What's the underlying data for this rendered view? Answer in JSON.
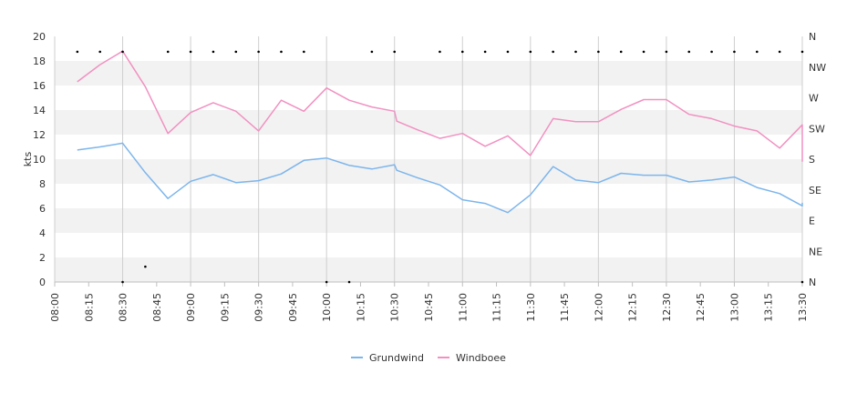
{
  "chart_data": {
    "type": "line",
    "ylabel": "kts",
    "ylim": [
      0,
      20
    ],
    "yticks": [
      0,
      2,
      4,
      6,
      8,
      10,
      12,
      14,
      16,
      18,
      20
    ],
    "xlim": [
      "08:00",
      "13:30"
    ],
    "xtick_labels": [
      "08:00",
      "08:15",
      "08:30",
      "08:45",
      "09:00",
      "09:15",
      "09:30",
      "09:45",
      "10:00",
      "10:15",
      "10:30",
      "10:45",
      "11:00",
      "11:15",
      "11:30",
      "11:45",
      "12:00",
      "12:15",
      "12:30",
      "12:45",
      "13:00",
      "13:15",
      "13:30"
    ],
    "direction_axis": {
      "labels": [
        "N",
        "NE",
        "E",
        "SE",
        "S",
        "SW",
        "W",
        "NW",
        "N"
      ],
      "unit": "degrees",
      "range": [
        0,
        360
      ]
    },
    "grid": true,
    "legend_position": "bottom-center",
    "series": [
      {
        "name": "Grundwind",
        "color": "#7cb5ec",
        "points": [
          [
            "08:10",
            10.75
          ],
          [
            "08:20",
            11.0
          ],
          [
            "08:30",
            11.3
          ],
          [
            "08:40",
            8.9
          ],
          [
            "08:50",
            6.8
          ],
          [
            "09:00",
            8.2
          ],
          [
            "09:10",
            8.75
          ],
          [
            "09:20",
            8.1
          ],
          [
            "09:30",
            8.25
          ],
          [
            "09:40",
            8.8
          ],
          [
            "09:50",
            9.9
          ],
          [
            "10:00",
            10.1
          ],
          [
            "10:10",
            9.5
          ],
          [
            "10:20",
            9.2
          ],
          [
            "10:30",
            9.55
          ],
          [
            "10:31",
            9.1
          ],
          [
            "10:40",
            8.5
          ],
          [
            "10:50",
            7.9
          ],
          [
            "11:00",
            6.7
          ],
          [
            "11:10",
            6.4
          ],
          [
            "11:20",
            5.65
          ],
          [
            "11:30",
            7.1
          ],
          [
            "11:40",
            9.4
          ],
          [
            "11:50",
            8.3
          ],
          [
            "12:00",
            8.1
          ],
          [
            "12:10",
            8.85
          ],
          [
            "12:20",
            8.7
          ],
          [
            "12:30",
            8.7
          ],
          [
            "12:40",
            8.15
          ],
          [
            "12:50",
            8.3
          ],
          [
            "13:00",
            8.55
          ],
          [
            "13:10",
            7.7
          ],
          [
            "13:20",
            7.2
          ],
          [
            "13:30",
            6.2
          ],
          [
            "13:30",
            6.45
          ]
        ]
      },
      {
        "name": "Windboee",
        "color": "#f191c1",
        "points": [
          [
            "08:10",
            16.3
          ],
          [
            "08:20",
            17.7
          ],
          [
            "08:30",
            18.8
          ],
          [
            "08:40",
            15.9
          ],
          [
            "08:50",
            12.1
          ],
          [
            "09:00",
            13.8
          ],
          [
            "09:10",
            14.6
          ],
          [
            "09:20",
            13.9
          ],
          [
            "09:30",
            12.3
          ],
          [
            "09:40",
            14.8
          ],
          [
            "09:50",
            13.9
          ],
          [
            "10:00",
            15.8
          ],
          [
            "10:10",
            14.8
          ],
          [
            "10:20",
            14.25
          ],
          [
            "10:30",
            13.9
          ],
          [
            "10:31",
            13.1
          ],
          [
            "10:40",
            12.4
          ],
          [
            "10:50",
            11.7
          ],
          [
            "11:00",
            12.1
          ],
          [
            "11:10",
            11.05
          ],
          [
            "11:20",
            11.9
          ],
          [
            "11:30",
            10.3
          ],
          [
            "11:40",
            13.3
          ],
          [
            "11:50",
            13.05
          ],
          [
            "12:00",
            13.05
          ],
          [
            "12:10",
            14.05
          ],
          [
            "12:20",
            14.85
          ],
          [
            "12:30",
            14.85
          ],
          [
            "12:40",
            13.65
          ],
          [
            "12:50",
            13.3
          ],
          [
            "13:00",
            12.7
          ],
          [
            "13:10",
            12.3
          ],
          [
            "13:20",
            10.9
          ],
          [
            "13:30",
            12.8
          ],
          [
            "13:30",
            9.8
          ]
        ]
      },
      {
        "name": "",
        "type": "scatter",
        "axis": "direction",
        "color": "#000000",
        "points": [
          [
            "08:10",
            337.5
          ],
          [
            "08:20",
            337.5
          ],
          [
            "08:30",
            337.5
          ],
          [
            "08:50",
            337.5
          ],
          [
            "09:00",
            337.5
          ],
          [
            "09:10",
            337.5
          ],
          [
            "09:20",
            337.5
          ],
          [
            "09:30",
            337.5
          ],
          [
            "09:40",
            337.5
          ],
          [
            "09:50",
            337.5
          ],
          [
            "10:20",
            337.5
          ],
          [
            "10:30",
            337.5
          ],
          [
            "10:50",
            337.5
          ],
          [
            "11:00",
            337.5
          ],
          [
            "11:10",
            337.5
          ],
          [
            "11:20",
            337.5
          ],
          [
            "11:30",
            337.5
          ],
          [
            "11:40",
            337.5
          ],
          [
            "11:50",
            337.5
          ],
          [
            "12:00",
            337.5
          ],
          [
            "12:10",
            337.5
          ],
          [
            "12:20",
            337.5
          ],
          [
            "12:30",
            337.5
          ],
          [
            "12:40",
            337.5
          ],
          [
            "12:50",
            337.5
          ],
          [
            "13:00",
            337.5
          ],
          [
            "13:10",
            337.5
          ],
          [
            "13:20",
            337.5
          ],
          [
            "13:30",
            337.5
          ],
          [
            "08:40",
            22.5
          ],
          [
            "08:30",
            0
          ],
          [
            "10:00",
            0
          ],
          [
            "10:10",
            0
          ],
          [
            "13:30",
            0
          ]
        ]
      }
    ]
  }
}
